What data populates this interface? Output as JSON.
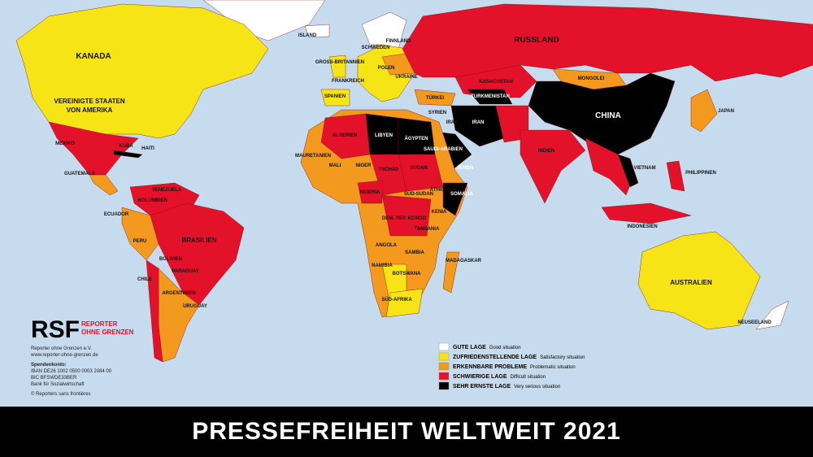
{
  "title": "PRESSEFREIHEIT WELTWEIT 2021",
  "logo": {
    "mark": "RSF",
    "line1": "REPORTER",
    "line2": "OHNE GRENZEN"
  },
  "contact": [
    "Reporter ohne Grenzen e.V.",
    "www.reporter-ohne-grenzen.de",
    "Spendenkonto:",
    "IBAN DE26 1002 0500 0003 2084 00",
    "BIC BFSWDE33BER",
    "Bank für Sozialwirtschaft",
    "© Reporters sans frontières"
  ],
  "legend": [
    {
      "de": "GUTE LAGE",
      "en": "Good situation",
      "color": "#ffffff"
    },
    {
      "de": "ZUFRIEDENSTELLENDE LAGE",
      "en": "Satisfactory situation",
      "color": "#f7e417"
    },
    {
      "de": "ERKENNBARE PROBLEME",
      "en": "Problematic situation",
      "color": "#f39a1e"
    },
    {
      "de": "SCHWIERIGE LAGE",
      "en": "Difficult situation",
      "color": "#e3122a"
    },
    {
      "de": "SEHR ERNSTE LAGE",
      "en": "Very serious situation",
      "color": "#000000"
    }
  ],
  "countries": [
    "KANADA",
    "VEREINIGTE STAATEN",
    "VON AMERIKA",
    "MEXIKO",
    "RUSSLAND",
    "CHINA",
    "MONGOLEI",
    "KASACHSTAN",
    "INDIEN",
    "IRAN",
    "LIBYEN",
    "ÄGYPTEN",
    "ALGERIEN",
    "BRASILIEN",
    "PERU",
    "ARGENTINIEN",
    "CHILE",
    "AUSTRALIEN",
    "NEUSEELAND",
    "INDONESIEN",
    "PHILIPPINEN",
    "JAPAN",
    "MAURETANIEN",
    "MALI",
    "NIGER",
    "TSCHAD",
    "SUDAN",
    "ÄTHIOPIEN",
    "SOMALIA",
    "KENIA",
    "TANSANIA",
    "ANGOLA",
    "NAMIBIA",
    "BOTSWANA",
    "SÜD-AFRIKA",
    "MADAGASKAR",
    "SAMBIA",
    "DEM. REP. KONGO",
    "NIGERIA",
    "VENEZUELA",
    "KOLUMBIEN",
    "ECUADOR",
    "BOLIVIEN",
    "PARAGUAY",
    "URUGUAY",
    "ISLAND",
    "FINNLAND",
    "SCHWEDEN",
    "POLEN",
    "UKRAINE",
    "FRANKREICH",
    "SPANIEN",
    "GROSS-BRITANNIEN",
    "SAUDI-ARABIEN",
    "JEMEN",
    "SYRIEN",
    "IRAK",
    "TURKMENISTAN",
    "KUBA",
    "HAITI",
    "GUATEMALA",
    "TÜRKEI",
    "SÜD-SUDAN",
    "VIETNAM"
  ]
}
